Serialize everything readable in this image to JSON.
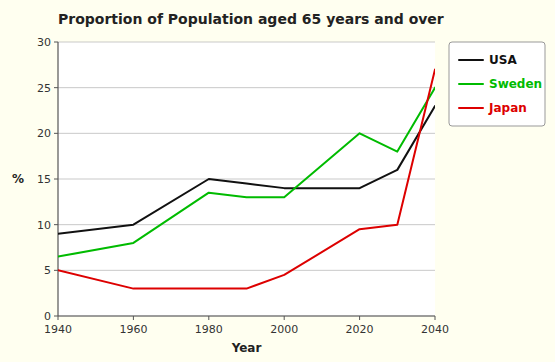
{
  "chart_data": {
    "type": "line",
    "title": "Proportion of Population aged 65 years and over",
    "xlabel": "Year",
    "ylabel": "%",
    "x": [
      1940,
      1960,
      1980,
      1990,
      2000,
      2020,
      2030,
      2040
    ],
    "series": [
      {
        "name": "USA",
        "color": "#111111",
        "values": [
          9,
          10,
          15,
          14.5,
          14,
          14,
          16,
          23
        ]
      },
      {
        "name": "Sweden",
        "color": "#00bb00",
        "values": [
          6.5,
          8,
          13.5,
          13,
          13,
          20,
          18,
          25
        ]
      },
      {
        "name": "Japan",
        "color": "#dd0000",
        "values": [
          5,
          3,
          3,
          3,
          4.5,
          9.5,
          10,
          27
        ]
      }
    ],
    "xlim": [
      1940,
      2040
    ],
    "ylim": [
      0,
      30
    ],
    "xticks": [
      1940,
      1960,
      1980,
      2000,
      2020,
      2040
    ],
    "yticks": [
      0,
      5,
      10,
      15,
      20,
      25,
      30
    ],
    "grid": "y",
    "legend": "right"
  }
}
